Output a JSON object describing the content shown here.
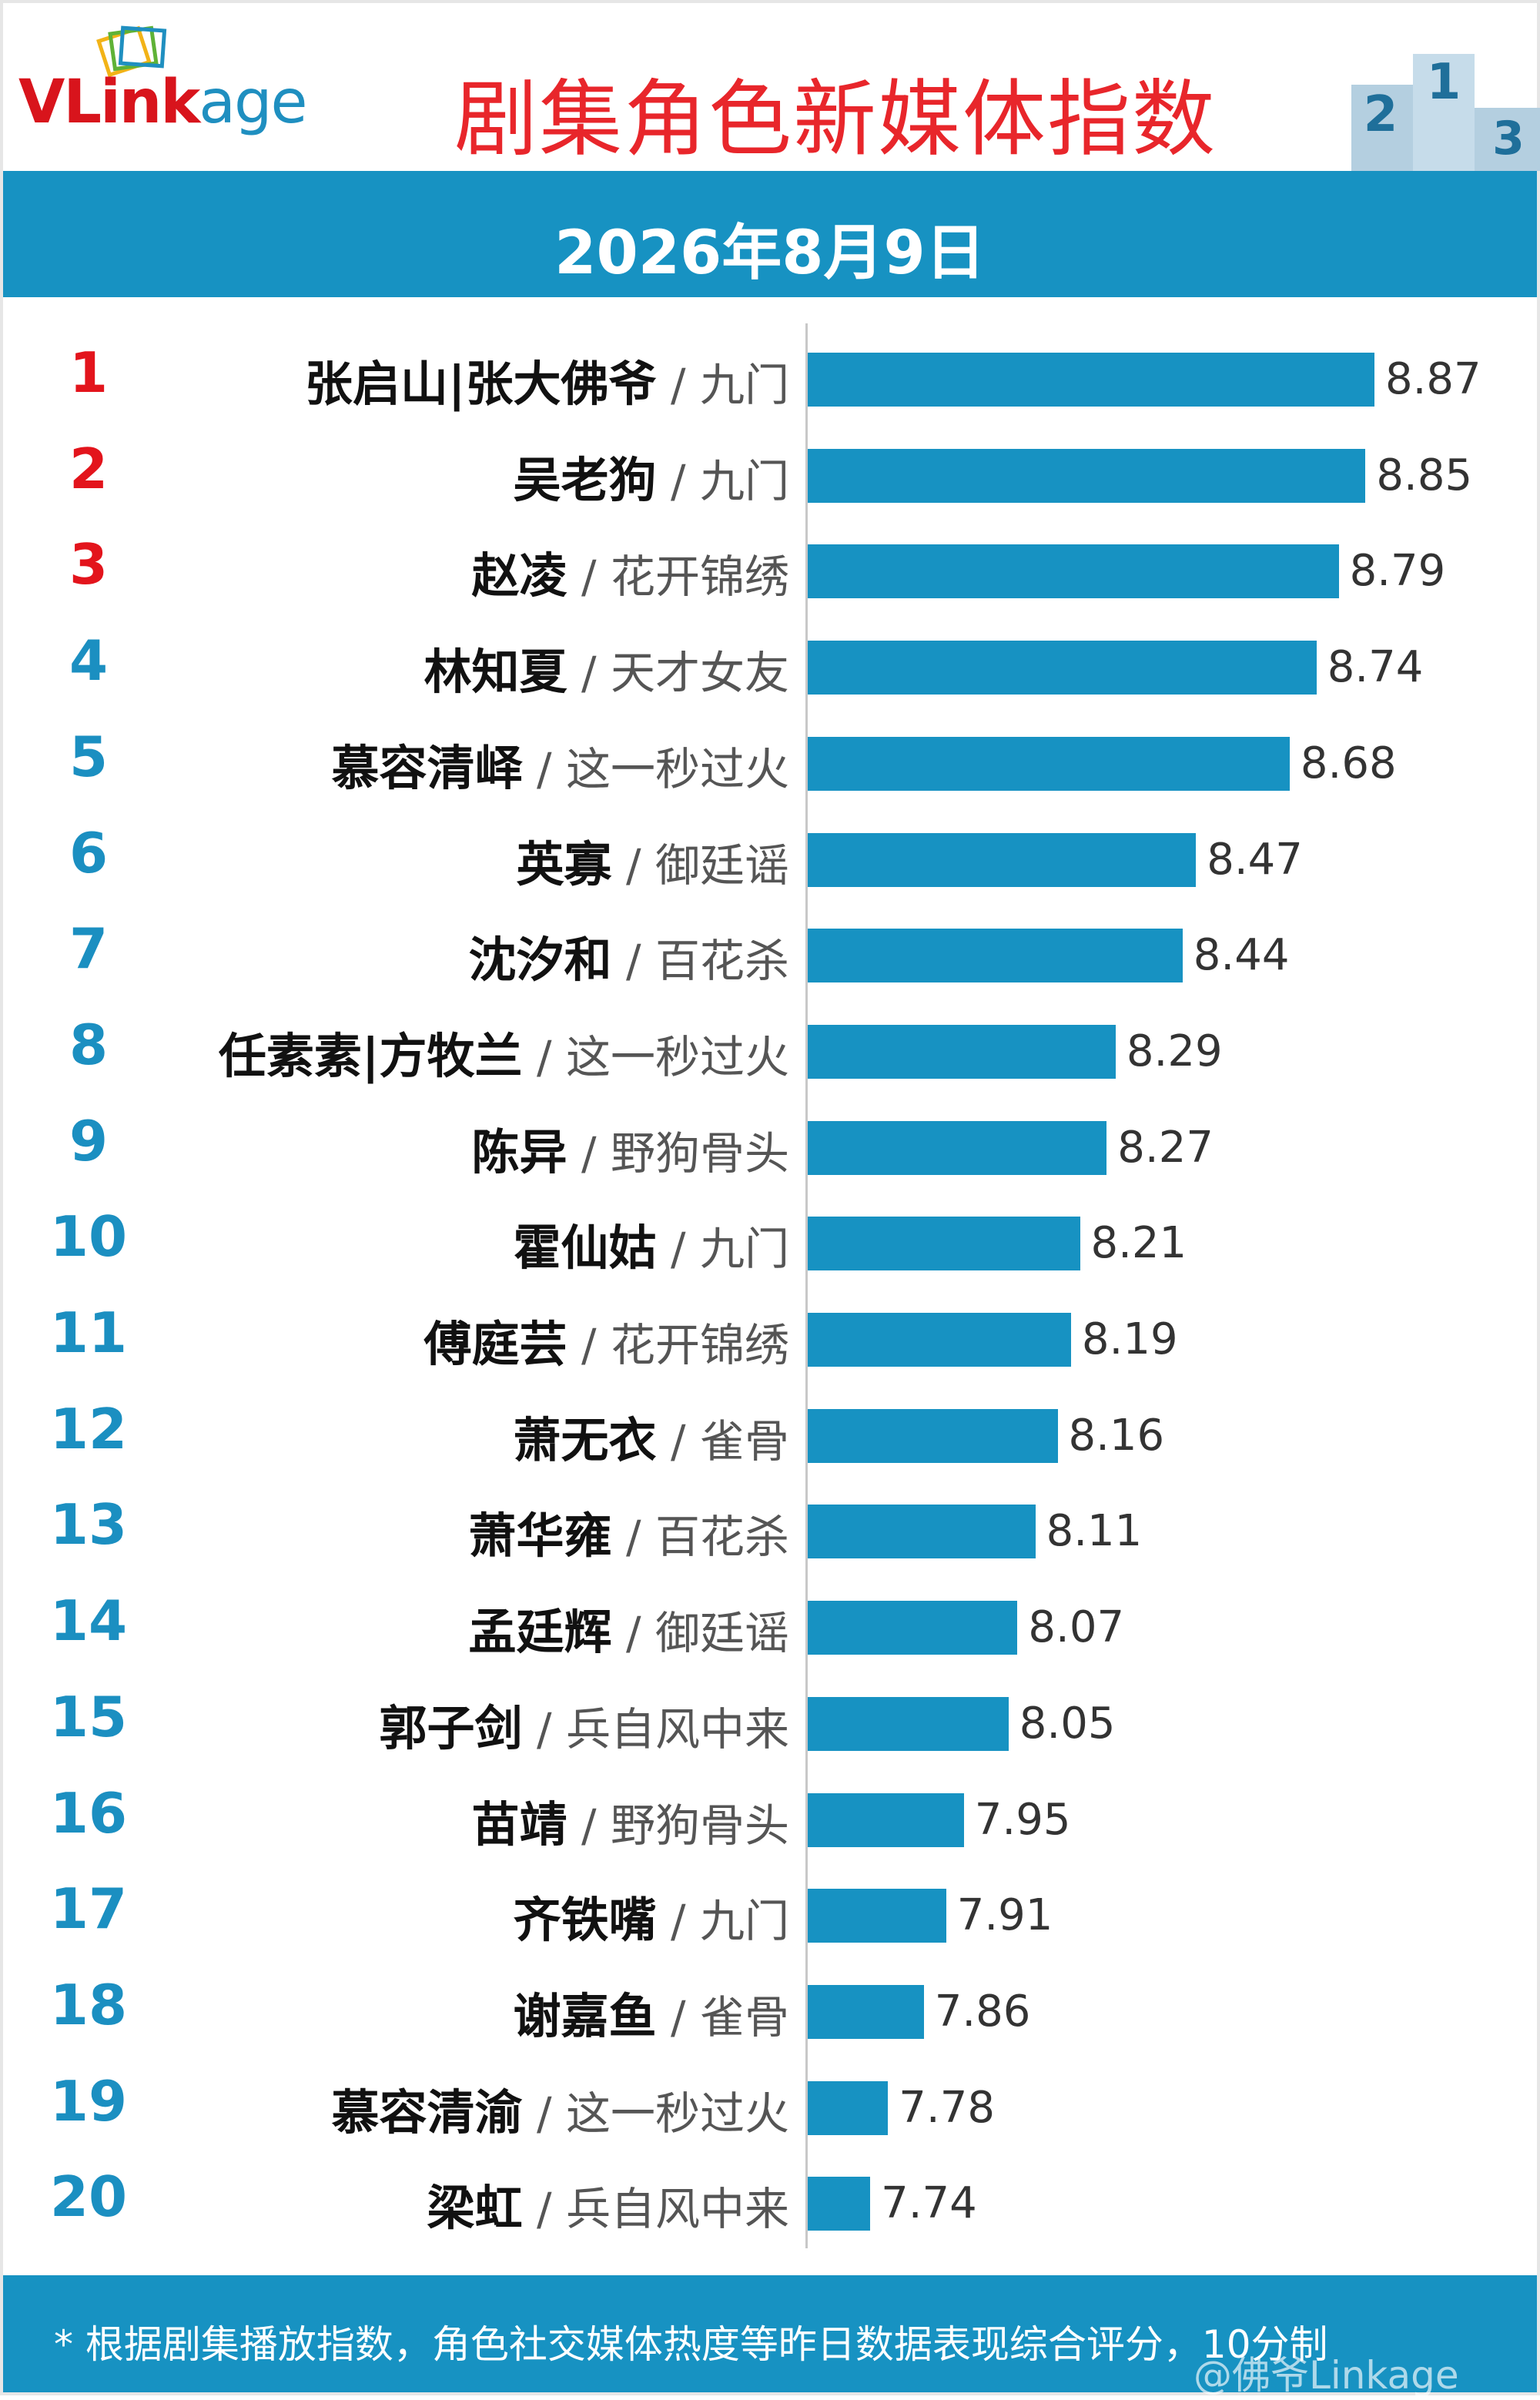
{
  "brand": {
    "logo_text": "VLinkage",
    "colors": {
      "red": "#e3141c",
      "blue": "#1792c2"
    }
  },
  "header": {
    "title": "剧集角色新媒体指数",
    "date": "2026年8月9日",
    "podium_icon": "podium-icon",
    "podium_labels": [
      "2",
      "1",
      "3"
    ]
  },
  "chart_data": {
    "type": "bar",
    "orientation": "horizontal",
    "categories": [
      "张启山|张大佛爷 / 九门",
      "吴老狗 / 九门",
      "赵凌 / 花开锦绣",
      "林知夏 / 天才女友",
      "慕容清峄 / 这一秒过火",
      "英寡 / 御廷谣",
      "沈汐和 / 百花杀",
      "任素素|方牧兰 / 这一秒过火",
      "陈异 / 野狗骨头",
      "霍仙姑 / 九门",
      "傅庭芸 / 花开锦绣",
      "萧无衣 / 雀骨",
      "萧华雍 / 百花杀",
      "孟廷辉 / 御廷谣",
      "郭子剑 / 兵自风中来",
      "苗靖 / 野狗骨头",
      "齐铁嘴 / 九门",
      "谢嘉鱼 / 雀骨",
      "慕容清渝 / 这一秒过火",
      "梁虹 / 兵自风中来"
    ],
    "rows": [
      {
        "rank": "1",
        "role": "张启山|张大佛爷",
        "drama": "九门",
        "value": 8.87,
        "value_label": "8.87"
      },
      {
        "rank": "2",
        "role": "吴老狗",
        "drama": "九门",
        "value": 8.85,
        "value_label": "8.85"
      },
      {
        "rank": "3",
        "role": "赵凌",
        "drama": "花开锦绣",
        "value": 8.79,
        "value_label": "8.79"
      },
      {
        "rank": "4",
        "role": "林知夏",
        "drama": "天才女友",
        "value": 8.74,
        "value_label": "8.74"
      },
      {
        "rank": "5",
        "role": "慕容清峄",
        "drama": "这一秒过火",
        "value": 8.68,
        "value_label": "8.68"
      },
      {
        "rank": "6",
        "role": "英寡",
        "drama": "御廷谣",
        "value": 8.47,
        "value_label": "8.47"
      },
      {
        "rank": "7",
        "role": "沈汐和",
        "drama": "百花杀",
        "value": 8.44,
        "value_label": "8.44"
      },
      {
        "rank": "8",
        "role": "任素素|方牧兰",
        "drama": "这一秒过火",
        "value": 8.29,
        "value_label": "8.29"
      },
      {
        "rank": "9",
        "role": "陈异",
        "drama": "野狗骨头",
        "value": 8.27,
        "value_label": "8.27"
      },
      {
        "rank": "10",
        "role": "霍仙姑",
        "drama": "九门",
        "value": 8.21,
        "value_label": "8.21"
      },
      {
        "rank": "11",
        "role": "傅庭芸",
        "drama": "花开锦绣",
        "value": 8.19,
        "value_label": "8.19"
      },
      {
        "rank": "12",
        "role": "萧无衣",
        "drama": "雀骨",
        "value": 8.16,
        "value_label": "8.16"
      },
      {
        "rank": "13",
        "role": "萧华雍",
        "drama": "百花杀",
        "value": 8.11,
        "value_label": "8.11"
      },
      {
        "rank": "14",
        "role": "孟廷辉",
        "drama": "御廷谣",
        "value": 8.07,
        "value_label": "8.07"
      },
      {
        "rank": "15",
        "role": "郭子剑",
        "drama": "兵自风中来",
        "value": 8.05,
        "value_label": "8.05"
      },
      {
        "rank": "16",
        "role": "苗靖",
        "drama": "野狗骨头",
        "value": 7.95,
        "value_label": "7.95"
      },
      {
        "rank": "17",
        "role": "齐铁嘴",
        "drama": "九门",
        "value": 7.91,
        "value_label": "7.91"
      },
      {
        "rank": "18",
        "role": "谢嘉鱼",
        "drama": "雀骨",
        "value": 7.86,
        "value_label": "7.86"
      },
      {
        "rank": "19",
        "role": "慕容清渝",
        "drama": "这一秒过火",
        "value": 7.78,
        "value_label": "7.78"
      },
      {
        "rank": "20",
        "role": "梁虹",
        "drama": "兵自风中来",
        "value": 7.74,
        "value_label": "7.74"
      }
    ],
    "separator": "/",
    "xlim": [
      7.6,
      8.87
    ],
    "grid": false,
    "legend": "none",
    "title": "剧集角色新媒体指数",
    "top_rank_count": 3
  },
  "footer": {
    "note": "* 根据剧集播放指数，角色社交媒体热度等昨日数据表现综合评分，10分制",
    "watermark": "@佛爷Linkage"
  }
}
